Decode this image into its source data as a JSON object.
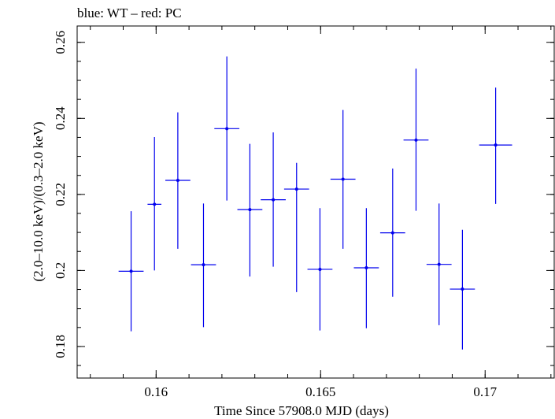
{
  "chart_data": {
    "type": "scatter",
    "title": "blue: WT – red: PC",
    "xlabel": "Time Since 57908.0 MJD (days)",
    "ylabel": "(2.0–10.0 keV)/(0.3–2.0 keV)",
    "xlim": [
      0.1576,
      0.1721
    ],
    "ylim": [
      0.1717,
      0.2643
    ],
    "x_ticks": [
      {
        "value": 0.16,
        "label": "0.16"
      },
      {
        "value": 0.165,
        "label": "0.165"
      },
      {
        "value": 0.17,
        "label": "0.17"
      }
    ],
    "y_ticks": [
      {
        "value": 0.18,
        "label": "0.18"
      },
      {
        "value": 0.2,
        "label": "0.2"
      },
      {
        "value": 0.22,
        "label": "0.22"
      },
      {
        "value": 0.24,
        "label": "0.24"
      },
      {
        "value": 0.26,
        "label": "0.26"
      }
    ],
    "grid": false,
    "series": [
      {
        "color": "#0000ee",
        "points": [
          {
            "x": 0.15924,
            "xerr": 0.00038,
            "y": 0.1998,
            "ylo": 0.184,
            "yhi": 0.2156
          },
          {
            "x": 0.15995,
            "xerr": 0.00021,
            "y": 0.2174,
            "ylo": 0.2,
            "yhi": 0.2351
          },
          {
            "x": 0.16066,
            "xerr": 0.00038,
            "y": 0.2237,
            "ylo": 0.2057,
            "yhi": 0.2416
          },
          {
            "x": 0.16144,
            "xerr": 0.00038,
            "y": 0.2015,
            "ylo": 0.1851,
            "yhi": 0.2176
          },
          {
            "x": 0.16215,
            "xerr": 0.00038,
            "y": 0.2373,
            "ylo": 0.2184,
            "yhi": 0.2563
          },
          {
            "x": 0.16285,
            "xerr": 0.00038,
            "y": 0.216,
            "ylo": 0.1984,
            "yhi": 0.2333
          },
          {
            "x": 0.16356,
            "xerr": 0.00038,
            "y": 0.2186,
            "ylo": 0.201,
            "yhi": 0.2363
          },
          {
            "x": 0.16427,
            "xerr": 0.00038,
            "y": 0.2214,
            "ylo": 0.1943,
            "yhi": 0.2283
          },
          {
            "x": 0.16498,
            "xerr": 0.00038,
            "y": 0.2003,
            "ylo": 0.1842,
            "yhi": 0.2164
          },
          {
            "x": 0.16568,
            "xerr": 0.00038,
            "y": 0.224,
            "ylo": 0.2057,
            "yhi": 0.2422
          },
          {
            "x": 0.16639,
            "xerr": 0.00038,
            "y": 0.2007,
            "ylo": 0.1848,
            "yhi": 0.2164
          },
          {
            "x": 0.16719,
            "xerr": 0.00038,
            "y": 0.2099,
            "ylo": 0.1931,
            "yhi": 0.2268
          },
          {
            "x": 0.1679,
            "xerr": 0.00038,
            "y": 0.2343,
            "ylo": 0.2157,
            "yhi": 0.2531
          },
          {
            "x": 0.1686,
            "xerr": 0.00038,
            "y": 0.2016,
            "ylo": 0.1856,
            "yhi": 0.2176
          },
          {
            "x": 0.16931,
            "xerr": 0.00038,
            "y": 0.1951,
            "ylo": 0.1792,
            "yhi": 0.2107
          },
          {
            "x": 0.17032,
            "xerr": 0.0005,
            "y": 0.233,
            "ylo": 0.2175,
            "yhi": 0.2481
          }
        ]
      }
    ]
  }
}
